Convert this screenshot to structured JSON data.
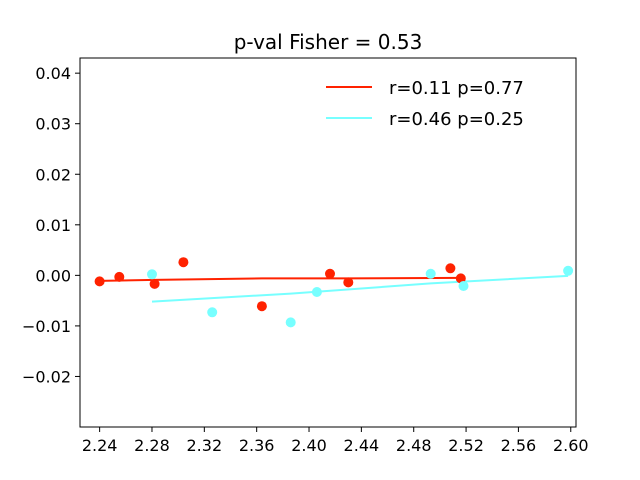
{
  "chart_data": {
    "type": "scatter",
    "title": "p-val Fisher = 0.53",
    "xlabel": "",
    "ylabel": "",
    "xlim": [
      2.225,
      2.604
    ],
    "ylim": [
      -0.03,
      0.043
    ],
    "x_ticks": [
      2.24,
      2.28,
      2.32,
      2.36,
      2.4,
      2.44,
      2.48,
      2.52,
      2.56,
      2.6
    ],
    "x_tick_labels": [
      "2.24",
      "2.28",
      "2.32",
      "2.36",
      "2.40",
      "2.44",
      "2.48",
      "2.52",
      "2.56",
      "2.60"
    ],
    "y_ticks": [
      -0.02,
      -0.01,
      0.0,
      0.01,
      0.02,
      0.03,
      0.04
    ],
    "y_tick_labels": [
      "−0.02",
      "−0.01",
      "0.00",
      "0.01",
      "0.02",
      "0.03",
      "0.04"
    ],
    "grid": false,
    "legend_position": "top-right",
    "series": [
      {
        "name": "r=0.11 p=0.77",
        "color": "#ff2200",
        "points": [
          {
            "x": 2.24,
            "y": -0.0012
          },
          {
            "x": 2.255,
            "y": -0.0003
          },
          {
            "x": 2.282,
            "y": -0.0017
          },
          {
            "x": 2.304,
            "y": 0.0026
          },
          {
            "x": 2.364,
            "y": -0.0061
          },
          {
            "x": 2.416,
            "y": 0.0003
          },
          {
            "x": 2.43,
            "y": -0.0014
          },
          {
            "x": 2.508,
            "y": 0.0014
          },
          {
            "x": 2.516,
            "y": -0.0006
          }
        ],
        "fit_line": [
          {
            "x": 2.24,
            "y": -0.0011
          },
          {
            "x": 2.282,
            "y": -0.0009
          },
          {
            "x": 2.364,
            "y": -0.0006
          },
          {
            "x": 2.43,
            "y": -0.0006
          },
          {
            "x": 2.516,
            "y": -0.0005
          }
        ]
      },
      {
        "name": "r=0.46 p=0.25",
        "color": "#77ffff",
        "points": [
          {
            "x": 2.28,
            "y": 0.0002
          },
          {
            "x": 2.326,
            "y": -0.0073
          },
          {
            "x": 2.386,
            "y": -0.0093
          },
          {
            "x": 2.406,
            "y": -0.0033
          },
          {
            "x": 2.493,
            "y": 0.0003
          },
          {
            "x": 2.518,
            "y": -0.0021
          },
          {
            "x": 2.598,
            "y": 0.0009
          }
        ],
        "fit_line": [
          {
            "x": 2.28,
            "y": -0.0052
          },
          {
            "x": 2.386,
            "y": -0.0036
          },
          {
            "x": 2.493,
            "y": -0.0016
          },
          {
            "x": 2.598,
            "y": -0.0001
          }
        ]
      }
    ]
  }
}
